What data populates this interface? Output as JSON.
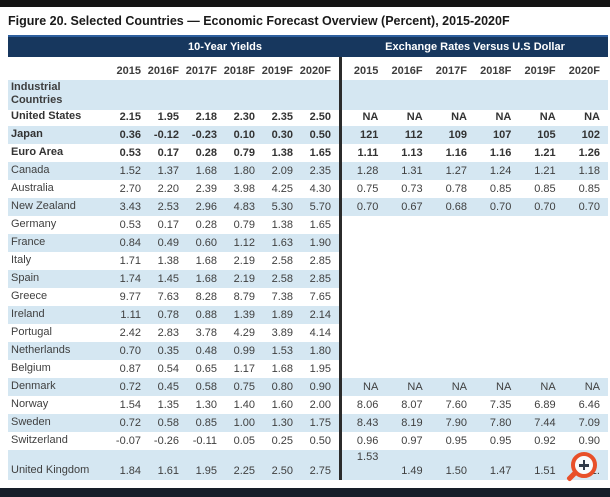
{
  "title": "Figure 20. Selected Countries — Economic Forecast Overview (Percent), 2015-2020F",
  "colors": {
    "header_bg": "#17375E",
    "header_top_line": "#2E5F9E",
    "row_stripe": "#D5E7F2",
    "group_divider": "#2B2B2B",
    "magnifier_orange": "#E8502A"
  },
  "table": {
    "group_headers": [
      "10-Year Yields",
      "Exchange Rates Versus U.S Dollar"
    ],
    "year_columns": [
      "2015",
      "2016F",
      "2017F",
      "2018F",
      "2019F",
      "2020F"
    ],
    "rows": [
      {
        "country": "Industrial Countries",
        "section": true,
        "stripe": true,
        "bold": false,
        "rates_blank": false,
        "yields": [
          "",
          "",
          "",
          "",
          "",
          ""
        ],
        "rates": [
          "",
          "",
          "",
          "",
          "",
          ""
        ]
      },
      {
        "country": "United States",
        "bold": true,
        "stripe": false,
        "rates_blank": false,
        "yields": [
          "2.15",
          "1.95",
          "2.18",
          "2.30",
          "2.35",
          "2.50"
        ],
        "rates": [
          "NA",
          "NA",
          "NA",
          "NA",
          "NA",
          "NA"
        ]
      },
      {
        "country": "Japan",
        "bold": true,
        "stripe": true,
        "rates_blank": false,
        "yields": [
          "0.36",
          "-0.12",
          "-0.23",
          "0.10",
          "0.30",
          "0.50"
        ],
        "rates": [
          "121",
          "112",
          "109",
          "107",
          "105",
          "102"
        ]
      },
      {
        "country": "Euro Area",
        "bold": true,
        "stripe": false,
        "rates_blank": false,
        "yields": [
          "0.53",
          "0.17",
          "0.28",
          "0.79",
          "1.38",
          "1.65"
        ],
        "rates": [
          "1.11",
          "1.13",
          "1.16",
          "1.16",
          "1.21",
          "1.26"
        ]
      },
      {
        "country": "Canada",
        "bold": false,
        "stripe": true,
        "rates_blank": false,
        "yields": [
          "1.52",
          "1.37",
          "1.68",
          "1.80",
          "2.09",
          "2.35"
        ],
        "rates": [
          "1.28",
          "1.31",
          "1.27",
          "1.24",
          "1.21",
          "1.18"
        ]
      },
      {
        "country": "Australia",
        "bold": false,
        "stripe": false,
        "rates_blank": false,
        "yields": [
          "2.70",
          "2.20",
          "2.39",
          "3.98",
          "4.25",
          "4.30"
        ],
        "rates": [
          "0.75",
          "0.73",
          "0.78",
          "0.85",
          "0.85",
          "0.85"
        ]
      },
      {
        "country": "New Zealand",
        "bold": false,
        "stripe": true,
        "rates_blank": false,
        "yields": [
          "3.43",
          "2.53",
          "2.96",
          "4.83",
          "5.30",
          "5.70"
        ],
        "rates": [
          "0.70",
          "0.67",
          "0.68",
          "0.70",
          "0.70",
          "0.70"
        ]
      },
      {
        "country": "Germany",
        "bold": false,
        "stripe": false,
        "rates_blank": true,
        "yields": [
          "0.53",
          "0.17",
          "0.28",
          "0.79",
          "1.38",
          "1.65"
        ],
        "rates": [
          "",
          "",
          "",
          "",
          "",
          ""
        ]
      },
      {
        "country": "France",
        "bold": false,
        "stripe": true,
        "rates_blank": true,
        "yields": [
          "0.84",
          "0.49",
          "0.60",
          "1.12",
          "1.63",
          "1.90"
        ],
        "rates": [
          "",
          "",
          "",
          "",
          "",
          ""
        ]
      },
      {
        "country": "Italy",
        "bold": false,
        "stripe": false,
        "rates_blank": true,
        "yields": [
          "1.71",
          "1.38",
          "1.68",
          "2.19",
          "2.58",
          "2.85"
        ],
        "rates": [
          "",
          "",
          "",
          "",
          "",
          ""
        ]
      },
      {
        "country": "Spain",
        "bold": false,
        "stripe": true,
        "rates_blank": true,
        "yields": [
          "1.74",
          "1.45",
          "1.68",
          "2.19",
          "2.58",
          "2.85"
        ],
        "rates": [
          "",
          "",
          "",
          "",
          "",
          ""
        ]
      },
      {
        "country": "Greece",
        "bold": false,
        "stripe": false,
        "rates_blank": true,
        "yields": [
          "9.77",
          "7.63",
          "8.28",
          "8.79",
          "7.38",
          "7.65"
        ],
        "rates": [
          "",
          "",
          "",
          "",
          "",
          ""
        ]
      },
      {
        "country": "Ireland",
        "bold": false,
        "stripe": true,
        "rates_blank": true,
        "yields": [
          "1.11",
          "0.78",
          "0.88",
          "1.39",
          "1.89",
          "2.14"
        ],
        "rates": [
          "",
          "",
          "",
          "",
          "",
          ""
        ]
      },
      {
        "country": "Portugal",
        "bold": false,
        "stripe": false,
        "rates_blank": true,
        "yields": [
          "2.42",
          "2.83",
          "3.78",
          "4.29",
          "3.89",
          "4.14"
        ],
        "rates": [
          "",
          "",
          "",
          "",
          "",
          ""
        ]
      },
      {
        "country": "Netherlands",
        "bold": false,
        "stripe": true,
        "rates_blank": true,
        "yields": [
          "0.70",
          "0.35",
          "0.48",
          "0.99",
          "1.53",
          "1.80"
        ],
        "rates": [
          "",
          "",
          "",
          "",
          "",
          ""
        ]
      },
      {
        "country": "Belgium",
        "bold": false,
        "stripe": false,
        "rates_blank": true,
        "yields": [
          "0.87",
          "0.54",
          "0.65",
          "1.17",
          "1.68",
          "1.95"
        ],
        "rates": [
          "",
          "",
          "",
          "",
          "",
          ""
        ]
      },
      {
        "country": "Denmark",
        "bold": false,
        "stripe": true,
        "rates_blank": false,
        "yields": [
          "0.72",
          "0.45",
          "0.58",
          "0.75",
          "0.80",
          "0.90"
        ],
        "rates": [
          "NA",
          "NA",
          "NA",
          "NA",
          "NA",
          "NA"
        ]
      },
      {
        "country": "Norway",
        "bold": false,
        "stripe": false,
        "rates_blank": false,
        "yields": [
          "1.54",
          "1.35",
          "1.30",
          "1.40",
          "1.60",
          "2.00"
        ],
        "rates": [
          "8.06",
          "8.07",
          "7.60",
          "7.35",
          "6.89",
          "6.46"
        ]
      },
      {
        "country": "Sweden",
        "bold": false,
        "stripe": true,
        "rates_blank": false,
        "yields": [
          "0.72",
          "0.58",
          "0.85",
          "1.00",
          "1.30",
          "1.75"
        ],
        "rates": [
          "8.43",
          "8.19",
          "7.90",
          "7.80",
          "7.44",
          "7.09"
        ]
      },
      {
        "country": "Switzerland",
        "bold": false,
        "stripe": false,
        "rates_blank": false,
        "yields": [
          "-0.07",
          "-0.26",
          "-0.11",
          "0.05",
          "0.25",
          "0.50"
        ],
        "rates": [
          "0.96",
          "0.97",
          "0.95",
          "0.95",
          "0.92",
          "0.90"
        ]
      },
      {
        "country": "United Kingdom",
        "bold": false,
        "stripe": true,
        "rates_blank": false,
        "uk_offset": true,
        "yields": [
          "1.84",
          "1.61",
          "1.95",
          "2.25",
          "2.50",
          "2.75"
        ],
        "rates": [
          "1.53",
          "1.49",
          "1.50",
          "1.47",
          "1.51",
          "1."
        ]
      }
    ]
  },
  "magnifier_icon": {
    "name": "zoom-in-magnifier",
    "glyph": "+"
  }
}
